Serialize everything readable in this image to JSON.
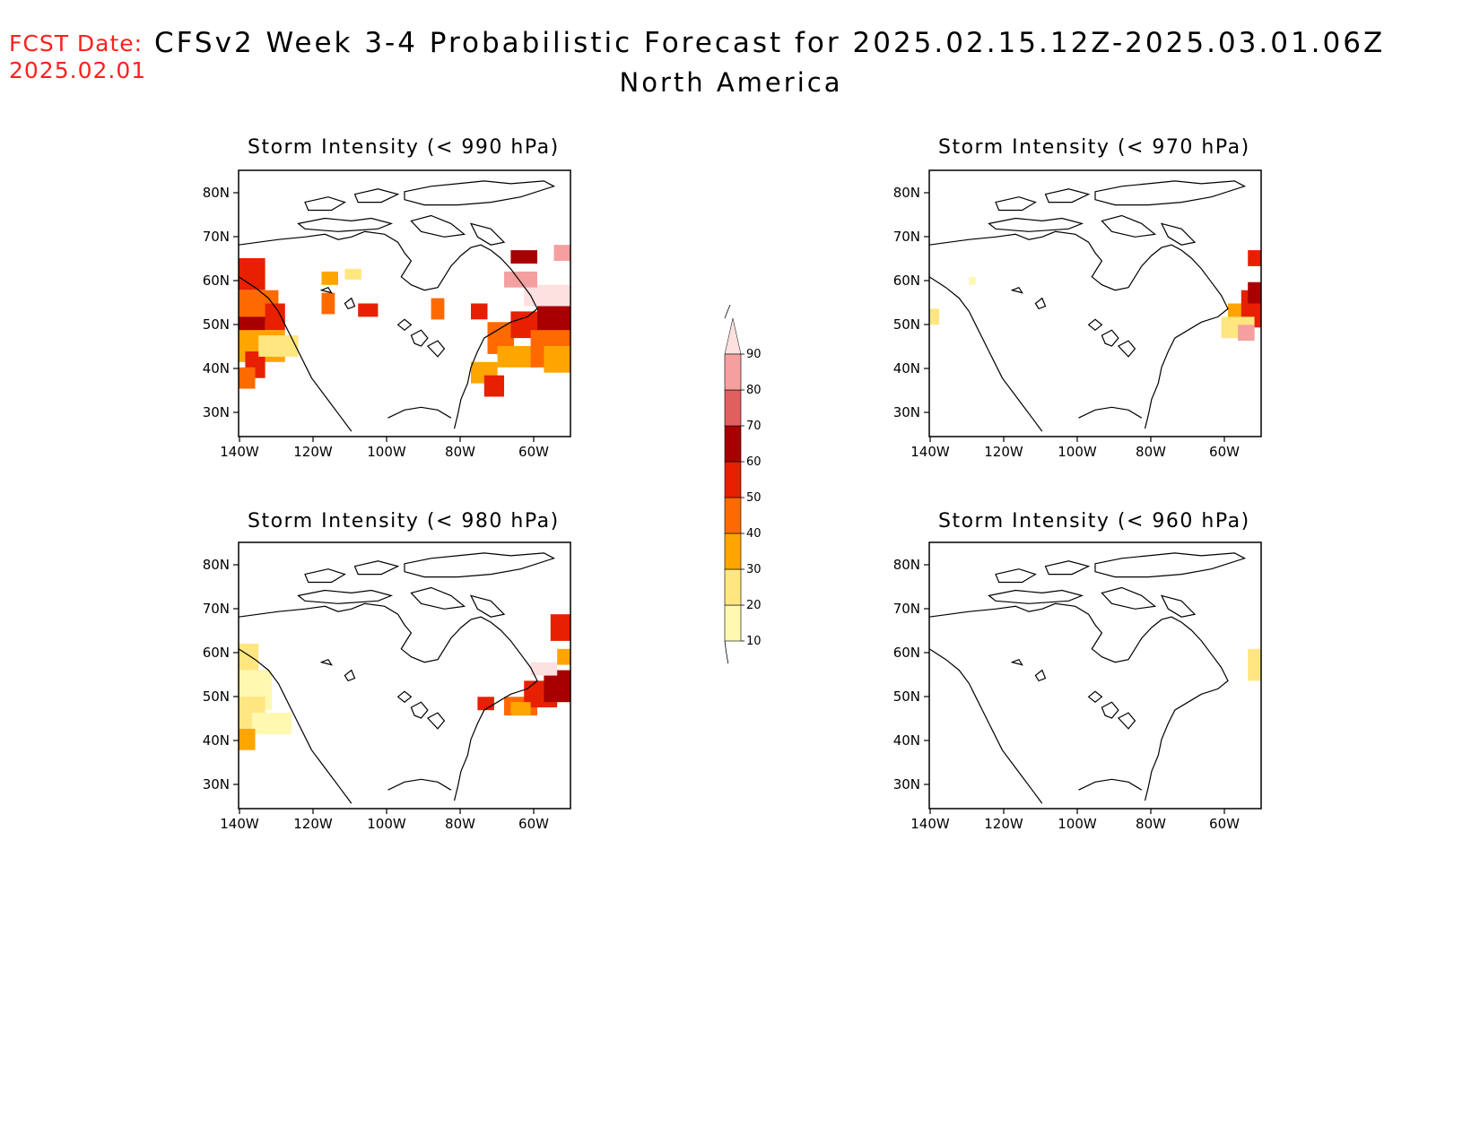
{
  "header": {
    "fcst_label": "FCST Date:",
    "fcst_date": "2025.02.01",
    "title": "CFSv2 Week 3-4 Probabilistic Forecast for 2025.02.15.12Z-2025.03.01.06Z",
    "region": "North America"
  },
  "panels": [
    {
      "id": "p990",
      "title": "Storm Intensity (< 990 hPa)"
    },
    {
      "id": "p970",
      "title": "Storm Intensity (< 970 hPa)"
    },
    {
      "id": "p980",
      "title": "Storm Intensity (< 980 hPa)"
    },
    {
      "id": "p960",
      "title": "Storm Intensity (< 960 hPa)"
    }
  ],
  "axes": {
    "lat_ticks": [
      "80N",
      "70N",
      "60N",
      "50N",
      "40N",
      "30N"
    ],
    "lon_ticks": [
      "140W",
      "120W",
      "100W",
      "80W",
      "60W"
    ]
  },
  "colorbar": {
    "levels": [
      "10",
      "20",
      "30",
      "40",
      "50",
      "60",
      "70",
      "80",
      "90"
    ],
    "colors": [
      "#fff8b0",
      "#ffe680",
      "#ffa500",
      "#ff6a00",
      "#e62000",
      "#a80000",
      "#e06060",
      "#f4a0a0",
      "#fde0e0"
    ]
  }
}
